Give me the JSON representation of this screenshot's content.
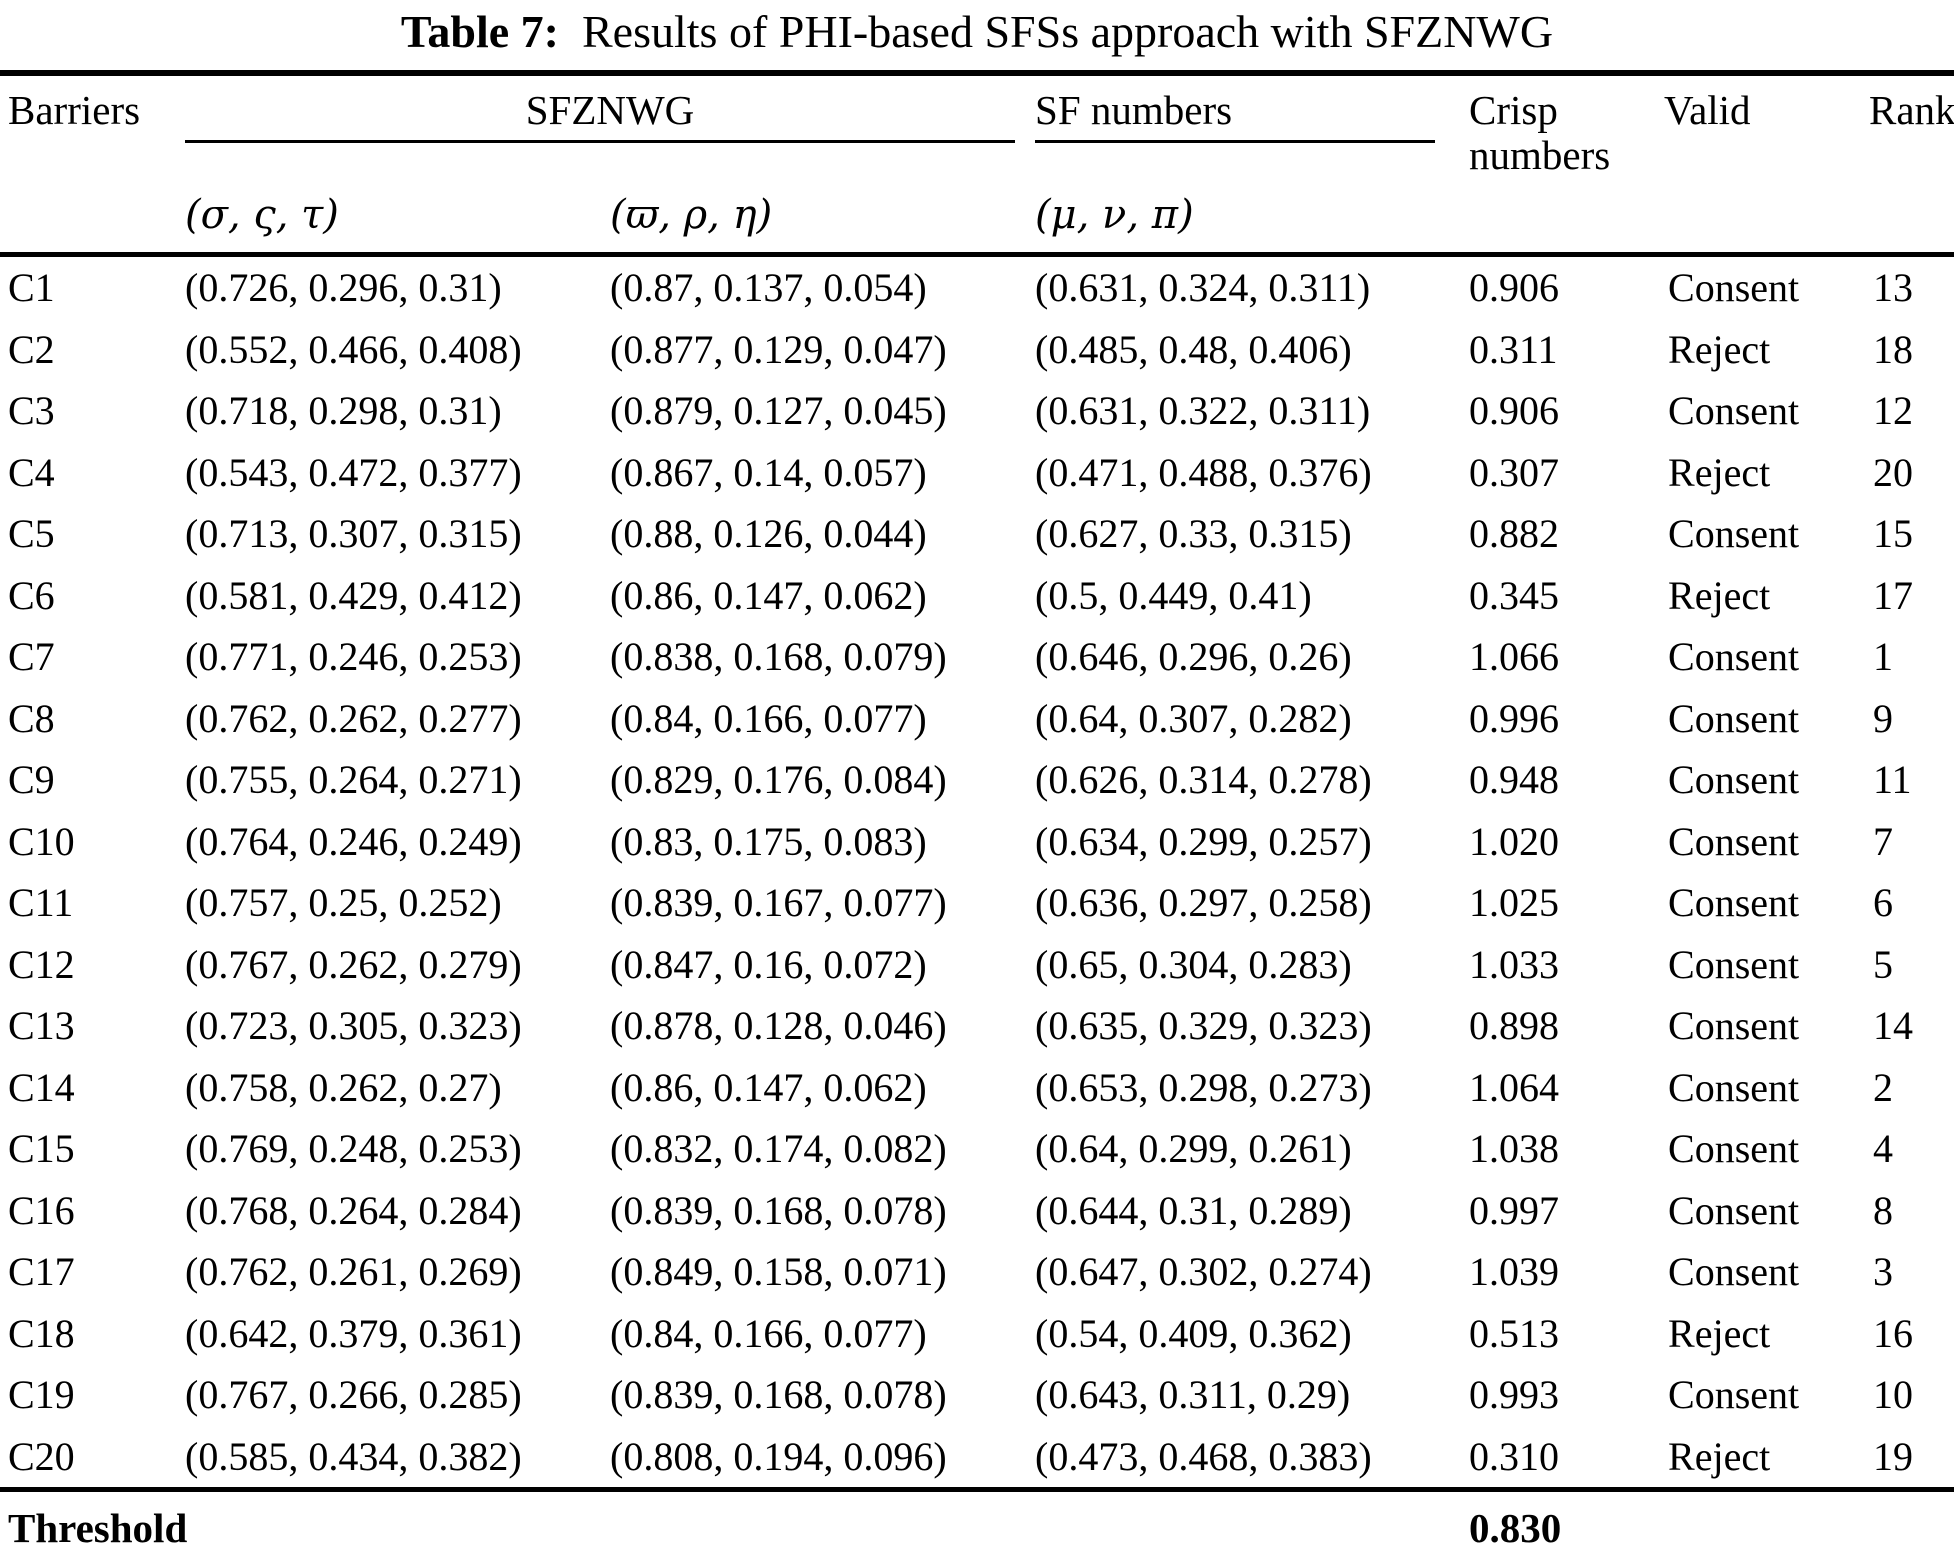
{
  "colors": {
    "text": "#000000",
    "background": "#ffffff",
    "rule": "#000000"
  },
  "title": {
    "label": "Table 7:",
    "text": "Results of PHI-based SFSs approach with SFZNWG"
  },
  "table": {
    "header": {
      "barriers": "Barriers",
      "group_sfznwg": "SFZNWG",
      "group_sf_numbers": "SF numbers",
      "crisp": "Crisp numbers",
      "valid": "Valid",
      "rank": "Rank",
      "sub_sfznwg_1": "(σ, ς, τ)",
      "sub_sfznwg_2": "(ϖ, ρ, η)",
      "sub_sf_numbers": "(μ, ν, π)"
    },
    "rows": [
      {
        "barrier": "C1",
        "sfznwg1": "(0.726, 0.296, 0.31)",
        "sfznwg2": "(0.87, 0.137, 0.054)",
        "sf": "(0.631, 0.324, 0.311)",
        "crisp": "0.906",
        "valid": "Consent",
        "rank": "13"
      },
      {
        "barrier": "C2",
        "sfznwg1": "(0.552, 0.466, 0.408)",
        "sfznwg2": "(0.877, 0.129, 0.047)",
        "sf": "(0.485, 0.48, 0.406)",
        "crisp": "0.311",
        "valid": "Reject",
        "rank": "18"
      },
      {
        "barrier": "C3",
        "sfznwg1": "(0.718, 0.298, 0.31)",
        "sfznwg2": "(0.879, 0.127, 0.045)",
        "sf": "(0.631, 0.322, 0.311)",
        "crisp": "0.906",
        "valid": "Consent",
        "rank": "12"
      },
      {
        "barrier": "C4",
        "sfznwg1": "(0.543, 0.472, 0.377)",
        "sfznwg2": "(0.867, 0.14, 0.057)",
        "sf": "(0.471, 0.488, 0.376)",
        "crisp": "0.307",
        "valid": "Reject",
        "rank": "20"
      },
      {
        "barrier": "C5",
        "sfznwg1": "(0.713, 0.307, 0.315)",
        "sfznwg2": "(0.88, 0.126, 0.044)",
        "sf": "(0.627, 0.33, 0.315)",
        "crisp": "0.882",
        "valid": "Consent",
        "rank": "15"
      },
      {
        "barrier": "C6",
        "sfznwg1": "(0.581, 0.429, 0.412)",
        "sfznwg2": "(0.86, 0.147, 0.062)",
        "sf": "(0.5, 0.449, 0.41)",
        "crisp": "0.345",
        "valid": "Reject",
        "rank": "17"
      },
      {
        "barrier": "C7",
        "sfznwg1": "(0.771, 0.246, 0.253)",
        "sfznwg2": "(0.838, 0.168, 0.079)",
        "sf": "(0.646, 0.296, 0.26)",
        "crisp": "1.066",
        "valid": "Consent",
        "rank": "1"
      },
      {
        "barrier": "C8",
        "sfznwg1": "(0.762, 0.262, 0.277)",
        "sfznwg2": "(0.84, 0.166, 0.077)",
        "sf": "(0.64, 0.307, 0.282)",
        "crisp": "0.996",
        "valid": "Consent",
        "rank": "9"
      },
      {
        "barrier": "C9",
        "sfznwg1": "(0.755, 0.264, 0.271)",
        "sfznwg2": "(0.829, 0.176, 0.084)",
        "sf": "(0.626, 0.314, 0.278)",
        "crisp": "0.948",
        "valid": "Consent",
        "rank": "11"
      },
      {
        "barrier": "C10",
        "sfznwg1": "(0.764, 0.246, 0.249)",
        "sfznwg2": "(0.83, 0.175, 0.083)",
        "sf": "(0.634, 0.299, 0.257)",
        "crisp": "1.020",
        "valid": "Consent",
        "rank": "7"
      },
      {
        "barrier": "C11",
        "sfznwg1": "(0.757, 0.25, 0.252)",
        "sfznwg2": "(0.839, 0.167, 0.077)",
        "sf": "(0.636, 0.297, 0.258)",
        "crisp": "1.025",
        "valid": "Consent",
        "rank": "6"
      },
      {
        "barrier": "C12",
        "sfznwg1": "(0.767, 0.262, 0.279)",
        "sfznwg2": "(0.847, 0.16, 0.072)",
        "sf": "(0.65, 0.304, 0.283)",
        "crisp": "1.033",
        "valid": "Consent",
        "rank": "5"
      },
      {
        "barrier": "C13",
        "sfznwg1": "(0.723, 0.305, 0.323)",
        "sfznwg2": "(0.878, 0.128, 0.046)",
        "sf": "(0.635, 0.329, 0.323)",
        "crisp": "0.898",
        "valid": "Consent",
        "rank": "14"
      },
      {
        "barrier": "C14",
        "sfznwg1": "(0.758, 0.262, 0.27)",
        "sfznwg2": "(0.86, 0.147, 0.062)",
        "sf": "(0.653, 0.298, 0.273)",
        "crisp": "1.064",
        "valid": "Consent",
        "rank": "2"
      },
      {
        "barrier": "C15",
        "sfznwg1": "(0.769, 0.248, 0.253)",
        "sfznwg2": "(0.832, 0.174, 0.082)",
        "sf": "(0.64, 0.299, 0.261)",
        "crisp": "1.038",
        "valid": "Consent",
        "rank": "4"
      },
      {
        "barrier": "C16",
        "sfznwg1": "(0.768, 0.264, 0.284)",
        "sfznwg2": "(0.839, 0.168, 0.078)",
        "sf": "(0.644, 0.31, 0.289)",
        "crisp": "0.997",
        "valid": "Consent",
        "rank": "8"
      },
      {
        "barrier": "C17",
        "sfznwg1": "(0.762, 0.261, 0.269)",
        "sfznwg2": "(0.849, 0.158, 0.071)",
        "sf": "(0.647, 0.302, 0.274)",
        "crisp": "1.039",
        "valid": "Consent",
        "rank": "3"
      },
      {
        "barrier": "C18",
        "sfznwg1": "(0.642, 0.379, 0.361)",
        "sfznwg2": "(0.84, 0.166, 0.077)",
        "sf": "(0.54, 0.409, 0.362)",
        "crisp": "0.513",
        "valid": "Reject",
        "rank": "16"
      },
      {
        "barrier": "C19",
        "sfznwg1": "(0.767, 0.266, 0.285)",
        "sfznwg2": "(0.839, 0.168, 0.078)",
        "sf": "(0.643, 0.311, 0.29)",
        "crisp": "0.993",
        "valid": "Consent",
        "rank": "10"
      },
      {
        "barrier": "C20",
        "sfznwg1": "(0.585, 0.434, 0.382)",
        "sfznwg2": "(0.808, 0.194, 0.096)",
        "sf": "(0.473, 0.468, 0.383)",
        "crisp": "0.310",
        "valid": "Reject",
        "rank": "19"
      }
    ],
    "threshold": {
      "label": "Threshold",
      "value": "0.830"
    }
  }
}
